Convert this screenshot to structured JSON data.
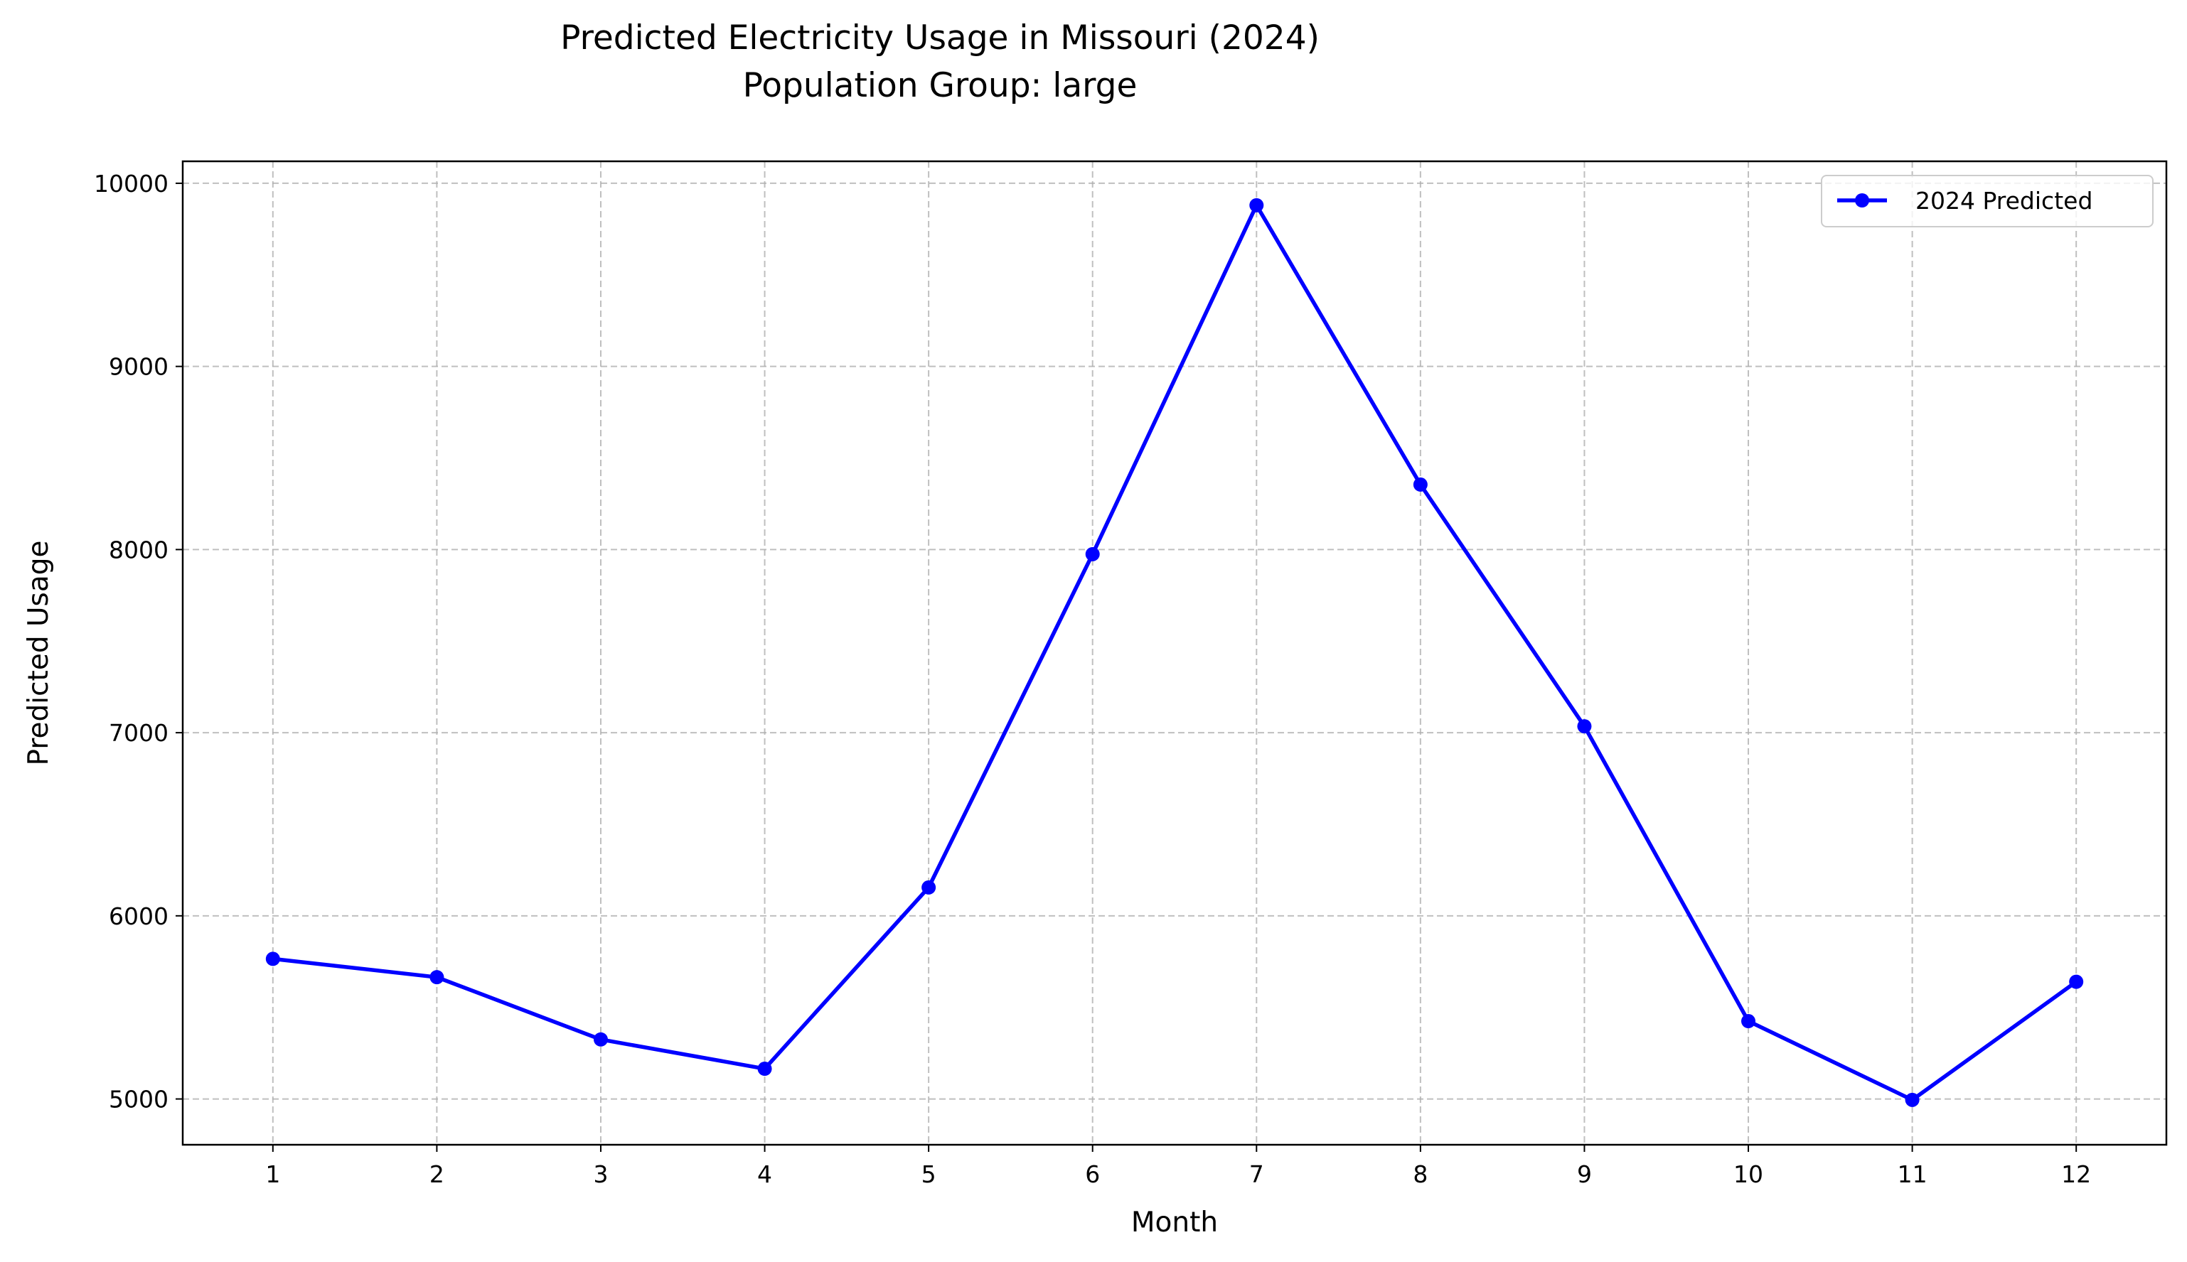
{
  "chart_data": {
    "type": "line",
    "title": "Predicted Electricity Usage in Missouri (2024)",
    "subtitle": "Population Group: large",
    "xlabel": "Month",
    "ylabel": "Predicted Usage",
    "x": [
      1,
      2,
      3,
      4,
      5,
      6,
      7,
      8,
      9,
      10,
      11,
      12
    ],
    "x_tick_labels": [
      "1",
      "2",
      "3",
      "4",
      "5",
      "6",
      "7",
      "8",
      "9",
      "10",
      "11",
      "12"
    ],
    "xlim": [
      0.45,
      12.55
    ],
    "ylim": [
      4750,
      10120
    ],
    "y_ticks": [
      5000,
      6000,
      7000,
      8000,
      9000,
      10000
    ],
    "y_tick_labels": [
      "5000",
      "6000",
      "7000",
      "8000",
      "9000",
      "10000"
    ],
    "grid": true,
    "legend_position": "top-right",
    "series": [
      {
        "name": "2024 Predicted",
        "color": "#0000ff",
        "marker": "circle",
        "values": [
          5765,
          5665,
          5325,
          5165,
          6155,
          7975,
          9880,
          8355,
          7035,
          5425,
          4995,
          5640
        ]
      }
    ]
  }
}
